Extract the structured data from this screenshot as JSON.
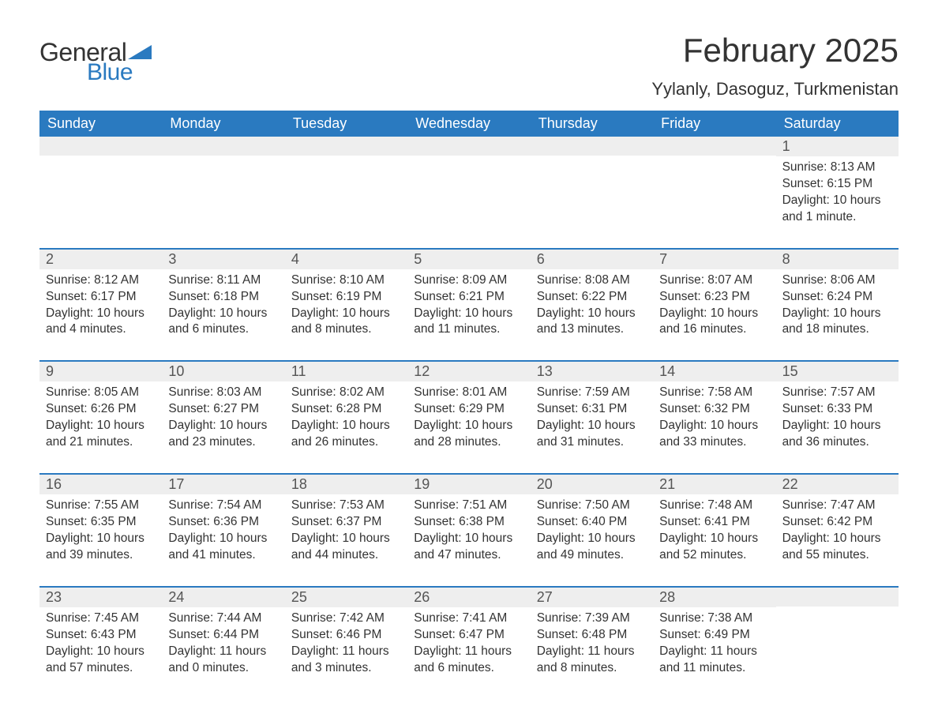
{
  "logo": {
    "text_general": "General",
    "text_blue": "Blue",
    "accent_color": "#2a7ac0"
  },
  "title": "February 2025",
  "location": "Yylanly, Dasoguz, Turkmenistan",
  "colors": {
    "header_bg": "#2a7ac0",
    "header_text": "#ffffff",
    "daynum_bg": "#eeeeee",
    "week_border": "#2a7ac0",
    "body_text": "#333333"
  },
  "daysOfWeek": [
    "Sunday",
    "Monday",
    "Tuesday",
    "Wednesday",
    "Thursday",
    "Friday",
    "Saturday"
  ],
  "weeks": [
    [
      null,
      null,
      null,
      null,
      null,
      null,
      {
        "n": "1",
        "sunrise": "Sunrise: 8:13 AM",
        "sunset": "Sunset: 6:15 PM",
        "daylight": "Daylight: 10 hours and 1 minute."
      }
    ],
    [
      {
        "n": "2",
        "sunrise": "Sunrise: 8:12 AM",
        "sunset": "Sunset: 6:17 PM",
        "daylight": "Daylight: 10 hours and 4 minutes."
      },
      {
        "n": "3",
        "sunrise": "Sunrise: 8:11 AM",
        "sunset": "Sunset: 6:18 PM",
        "daylight": "Daylight: 10 hours and 6 minutes."
      },
      {
        "n": "4",
        "sunrise": "Sunrise: 8:10 AM",
        "sunset": "Sunset: 6:19 PM",
        "daylight": "Daylight: 10 hours and 8 minutes."
      },
      {
        "n": "5",
        "sunrise": "Sunrise: 8:09 AM",
        "sunset": "Sunset: 6:21 PM",
        "daylight": "Daylight: 10 hours and 11 minutes."
      },
      {
        "n": "6",
        "sunrise": "Sunrise: 8:08 AM",
        "sunset": "Sunset: 6:22 PM",
        "daylight": "Daylight: 10 hours and 13 minutes."
      },
      {
        "n": "7",
        "sunrise": "Sunrise: 8:07 AM",
        "sunset": "Sunset: 6:23 PM",
        "daylight": "Daylight: 10 hours and 16 minutes."
      },
      {
        "n": "8",
        "sunrise": "Sunrise: 8:06 AM",
        "sunset": "Sunset: 6:24 PM",
        "daylight": "Daylight: 10 hours and 18 minutes."
      }
    ],
    [
      {
        "n": "9",
        "sunrise": "Sunrise: 8:05 AM",
        "sunset": "Sunset: 6:26 PM",
        "daylight": "Daylight: 10 hours and 21 minutes."
      },
      {
        "n": "10",
        "sunrise": "Sunrise: 8:03 AM",
        "sunset": "Sunset: 6:27 PM",
        "daylight": "Daylight: 10 hours and 23 minutes."
      },
      {
        "n": "11",
        "sunrise": "Sunrise: 8:02 AM",
        "sunset": "Sunset: 6:28 PM",
        "daylight": "Daylight: 10 hours and 26 minutes."
      },
      {
        "n": "12",
        "sunrise": "Sunrise: 8:01 AM",
        "sunset": "Sunset: 6:29 PM",
        "daylight": "Daylight: 10 hours and 28 minutes."
      },
      {
        "n": "13",
        "sunrise": "Sunrise: 7:59 AM",
        "sunset": "Sunset: 6:31 PM",
        "daylight": "Daylight: 10 hours and 31 minutes."
      },
      {
        "n": "14",
        "sunrise": "Sunrise: 7:58 AM",
        "sunset": "Sunset: 6:32 PM",
        "daylight": "Daylight: 10 hours and 33 minutes."
      },
      {
        "n": "15",
        "sunrise": "Sunrise: 7:57 AM",
        "sunset": "Sunset: 6:33 PM",
        "daylight": "Daylight: 10 hours and 36 minutes."
      }
    ],
    [
      {
        "n": "16",
        "sunrise": "Sunrise: 7:55 AM",
        "sunset": "Sunset: 6:35 PM",
        "daylight": "Daylight: 10 hours and 39 minutes."
      },
      {
        "n": "17",
        "sunrise": "Sunrise: 7:54 AM",
        "sunset": "Sunset: 6:36 PM",
        "daylight": "Daylight: 10 hours and 41 minutes."
      },
      {
        "n": "18",
        "sunrise": "Sunrise: 7:53 AM",
        "sunset": "Sunset: 6:37 PM",
        "daylight": "Daylight: 10 hours and 44 minutes."
      },
      {
        "n": "19",
        "sunrise": "Sunrise: 7:51 AM",
        "sunset": "Sunset: 6:38 PM",
        "daylight": "Daylight: 10 hours and 47 minutes."
      },
      {
        "n": "20",
        "sunrise": "Sunrise: 7:50 AM",
        "sunset": "Sunset: 6:40 PM",
        "daylight": "Daylight: 10 hours and 49 minutes."
      },
      {
        "n": "21",
        "sunrise": "Sunrise: 7:48 AM",
        "sunset": "Sunset: 6:41 PM",
        "daylight": "Daylight: 10 hours and 52 minutes."
      },
      {
        "n": "22",
        "sunrise": "Sunrise: 7:47 AM",
        "sunset": "Sunset: 6:42 PM",
        "daylight": "Daylight: 10 hours and 55 minutes."
      }
    ],
    [
      {
        "n": "23",
        "sunrise": "Sunrise: 7:45 AM",
        "sunset": "Sunset: 6:43 PM",
        "daylight": "Daylight: 10 hours and 57 minutes."
      },
      {
        "n": "24",
        "sunrise": "Sunrise: 7:44 AM",
        "sunset": "Sunset: 6:44 PM",
        "daylight": "Daylight: 11 hours and 0 minutes."
      },
      {
        "n": "25",
        "sunrise": "Sunrise: 7:42 AM",
        "sunset": "Sunset: 6:46 PM",
        "daylight": "Daylight: 11 hours and 3 minutes."
      },
      {
        "n": "26",
        "sunrise": "Sunrise: 7:41 AM",
        "sunset": "Sunset: 6:47 PM",
        "daylight": "Daylight: 11 hours and 6 minutes."
      },
      {
        "n": "27",
        "sunrise": "Sunrise: 7:39 AM",
        "sunset": "Sunset: 6:48 PM",
        "daylight": "Daylight: 11 hours and 8 minutes."
      },
      {
        "n": "28",
        "sunrise": "Sunrise: 7:38 AM",
        "sunset": "Sunset: 6:49 PM",
        "daylight": "Daylight: 11 hours and 11 minutes."
      },
      null
    ]
  ]
}
